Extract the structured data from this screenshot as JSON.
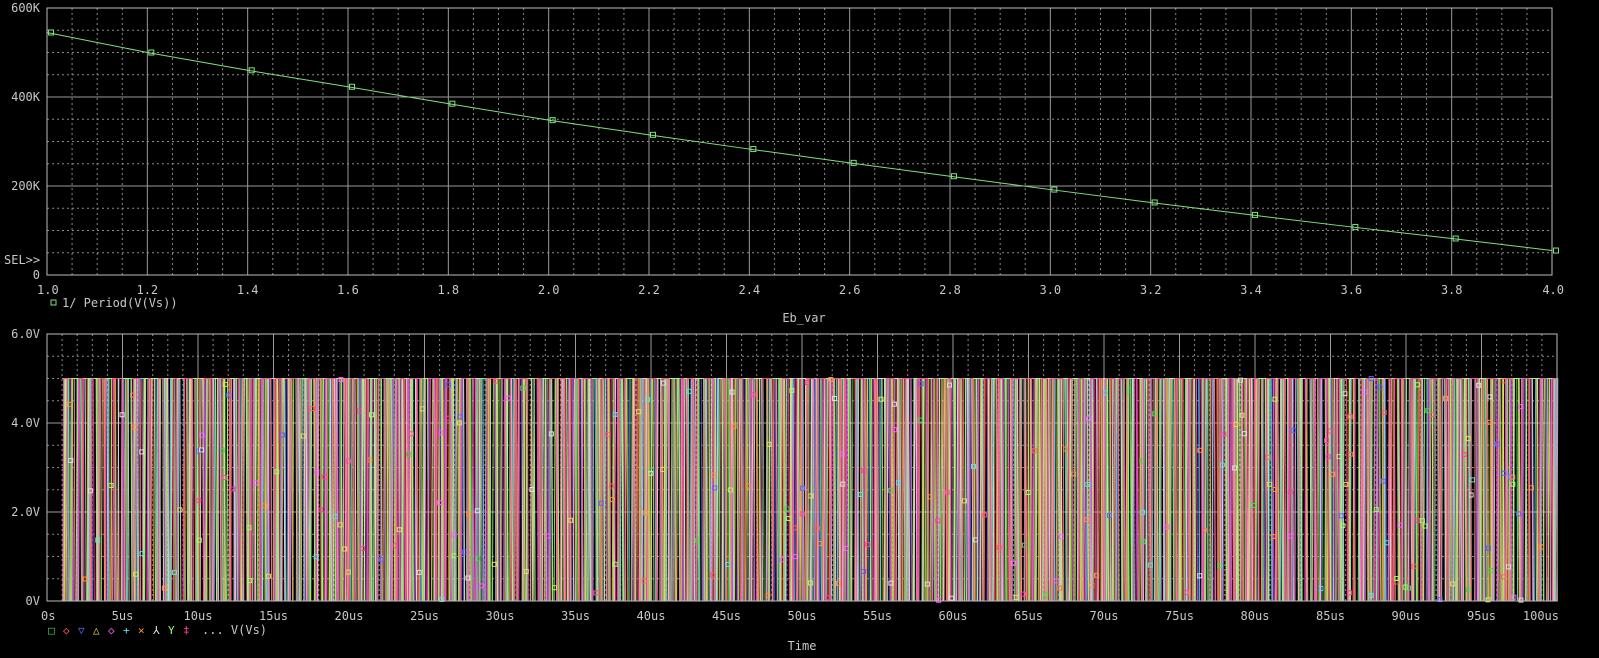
{
  "chart_data": [
    {
      "type": "line",
      "series": [
        {
          "name": "1/ Period(V(Vs))",
          "color": "#7fe07f",
          "marker": "square",
          "x": [
            1.0,
            1.2,
            1.4,
            1.6,
            1.8,
            2.0,
            2.2,
            2.4,
            2.6,
            2.8,
            3.0,
            3.2,
            3.4,
            3.6,
            3.8,
            4.0
          ],
          "y": [
            545000,
            500000,
            460000,
            423000,
            385000,
            348000,
            315000,
            283000,
            252000,
            222000,
            192000,
            163000,
            135000,
            108000,
            82000,
            55000
          ]
        }
      ],
      "xlabel": "Eb_var",
      "ylabel": "",
      "xlim": [
        1.0,
        4.0
      ],
      "ylim": [
        0,
        600000
      ],
      "x_ticks": [
        "1.0",
        "1.2",
        "1.4",
        "1.6",
        "1.8",
        "2.0",
        "2.2",
        "2.4",
        "2.6",
        "2.8",
        "3.0",
        "3.2",
        "3.4",
        "3.6",
        "3.8",
        "4.0"
      ],
      "y_ticks": [
        "0",
        "200K",
        "400K",
        "600K"
      ],
      "legend": [
        {
          "symbol": "□",
          "label": "1/ Period(V(Vs))"
        }
      ],
      "cursor_label": "SEL>>",
      "grid": true
    },
    {
      "type": "line",
      "description_series": "V(Vs) for multiple parametric runs (pulse trains 0V to 5V)",
      "series_colors": [
        "#4fd04f",
        "#ff6060",
        "#6060ff",
        "#e0e060",
        "#ff60ff",
        "#60e0e0",
        "#ff9040",
        "#e0e0e0",
        "#a0ff60",
        "#ff40a0"
      ],
      "legend": [
        {
          "symbol": "□",
          "color": "#4fd04f"
        },
        {
          "symbol": "◇",
          "color": "#ff6060"
        },
        {
          "symbol": "▽",
          "color": "#6060ff"
        },
        {
          "symbol": "△",
          "color": "#e0e060"
        },
        {
          "symbol": "◇",
          "color": "#ff60ff"
        },
        {
          "symbol": "+",
          "color": "#60e0e0"
        },
        {
          "symbol": "×",
          "color": "#ff9040"
        },
        {
          "symbol": "⅄",
          "color": "#e0e0e0"
        },
        {
          "symbol": "Y",
          "color": "#a0ff60"
        },
        {
          "symbol": "‡",
          "color": "#ff40a0"
        }
      ],
      "legend_tail": "... V(Vs)",
      "xlabel": "Time",
      "ylabel": "",
      "xlim_us": [
        0,
        100
      ],
      "ylim": [
        0,
        6.0
      ],
      "high_level": 5.0,
      "low_level": 0.0,
      "x_ticks": [
        "0s",
        "5us",
        "10us",
        "15us",
        "20us",
        "25us",
        "30us",
        "35us",
        "40us",
        "45us",
        "50us",
        "55us",
        "60us",
        "65us",
        "70us",
        "75us",
        "80us",
        "85us",
        "90us",
        "95us",
        "100us"
      ],
      "y_ticks": [
        "0V",
        "2.0V",
        "4.0V",
        "6.0V"
      ],
      "grid": true
    }
  ]
}
